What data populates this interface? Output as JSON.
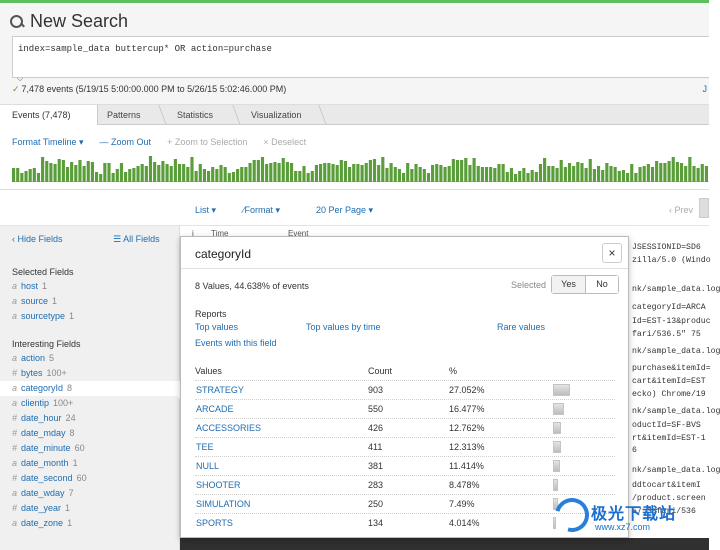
{
  "header": {
    "title": "New Search",
    "query": "index=sample_data buttercup* OR action=purchase",
    "events_summary": "7,478 events (5/19/15 5:00:00.000 PM to 5/26/15 5:02:46.000 PM)",
    "right_fragment": "J"
  },
  "tabs": [
    {
      "label": "Events (7,478)"
    },
    {
      "label": "Patterns"
    },
    {
      "label": "Statistics"
    },
    {
      "label": "Visualization"
    }
  ],
  "timeline": {
    "format_label": "Format Timeline ▾",
    "zoom_out": "— Zoom Out",
    "zoom_selection": "+ Zoom to Selection",
    "deselect": "× Deselect",
    "bar_color": "#5a9e3a"
  },
  "results_bar": {
    "list": "List ▾",
    "format": "∕Format ▾",
    "per_page": "20 Per Page ▾",
    "prev": "‹ Prev"
  },
  "sidebar": {
    "hide_fields": "‹ Hide Fields",
    "all_fields": "☰ All Fields",
    "selected_heading": "Selected Fields",
    "selected": [
      {
        "type": "a",
        "name": "host",
        "count": "1"
      },
      {
        "type": "a",
        "name": "source",
        "count": "1"
      },
      {
        "type": "a",
        "name": "sourcetype",
        "count": "1"
      }
    ],
    "interesting_heading": "Interesting Fields",
    "interesting": [
      {
        "type": "a",
        "name": "action",
        "count": "5"
      },
      {
        "type": "#",
        "name": "bytes",
        "count": "100+"
      },
      {
        "type": "a",
        "name": "categoryId",
        "count": "8"
      },
      {
        "type": "a",
        "name": "clientip",
        "count": "100+"
      },
      {
        "type": "#",
        "name": "date_hour",
        "count": "24"
      },
      {
        "type": "#",
        "name": "date_mday",
        "count": "8"
      },
      {
        "type": "#",
        "name": "date_minute",
        "count": "60"
      },
      {
        "type": "a",
        "name": "date_month",
        "count": "1"
      },
      {
        "type": "#",
        "name": "date_second",
        "count": "60"
      },
      {
        "type": "a",
        "name": "date_wday",
        "count": "7"
      },
      {
        "type": "#",
        "name": "date_year",
        "count": "1"
      },
      {
        "type": "a",
        "name": "date_zone",
        "count": "1"
      }
    ]
  },
  "events_table": {
    "col_i": "i",
    "col_time": "Time",
    "col_event": "Event",
    "raw_lines": [
      "JSESSIONID=SD6",
      "zilla/5.0 (Windo",
      "nk/sample_data.log",
      "categoryId=ARCA",
      "Id=EST-13&produc",
      "fari/536.5\" 75",
      "nk/sample_data.log",
      "purchase&itemId=",
      "cart&itemId=EST",
      "ecko) Chrome/19",
      "nk/sample_data.log",
      "oductId=SF-BVS",
      "rt&itemId=EST-1",
      "6",
      "nk/sample_data.log",
      "ddtocart&itemI",
      "/product.screen",
      "57 Safari/536"
    ]
  },
  "popup": {
    "title": "categoryId",
    "close": "×",
    "summary": "8 Values, 44.638% of events",
    "selected_label": "Selected",
    "yes": "Yes",
    "no": "No",
    "reports_heading": "Reports",
    "top_values": "Top values",
    "top_values_by_time": "Top values by time",
    "rare_values": "Rare values",
    "events_with_field": "Events with this field",
    "col_values": "Values",
    "col_count": "Count",
    "col_pct": "%",
    "rows": [
      {
        "value": "STRATEGY",
        "count": "903",
        "pct": "27.052%",
        "fraction": 0.27052
      },
      {
        "value": "ARCADE",
        "count": "550",
        "pct": "16.477%",
        "fraction": 0.16477
      },
      {
        "value": "ACCESSORIES",
        "count": "426",
        "pct": "12.762%",
        "fraction": 0.12762
      },
      {
        "value": "TEE",
        "count": "411",
        "pct": "12.313%",
        "fraction": 0.12313
      },
      {
        "value": "NULL",
        "count": "381",
        "pct": "11.414%",
        "fraction": 0.11414
      },
      {
        "value": "SHOOTER",
        "count": "283",
        "pct": "8.478%",
        "fraction": 0.08478
      },
      {
        "value": "SIMULATION",
        "count": "250",
        "pct": "7.49%",
        "fraction": 0.0749
      },
      {
        "value": "SPORTS",
        "count": "134",
        "pct": "4.014%",
        "fraction": 0.04014
      }
    ]
  },
  "watermark": {
    "text": "极光下载站",
    "url": "www.xz7.com"
  }
}
